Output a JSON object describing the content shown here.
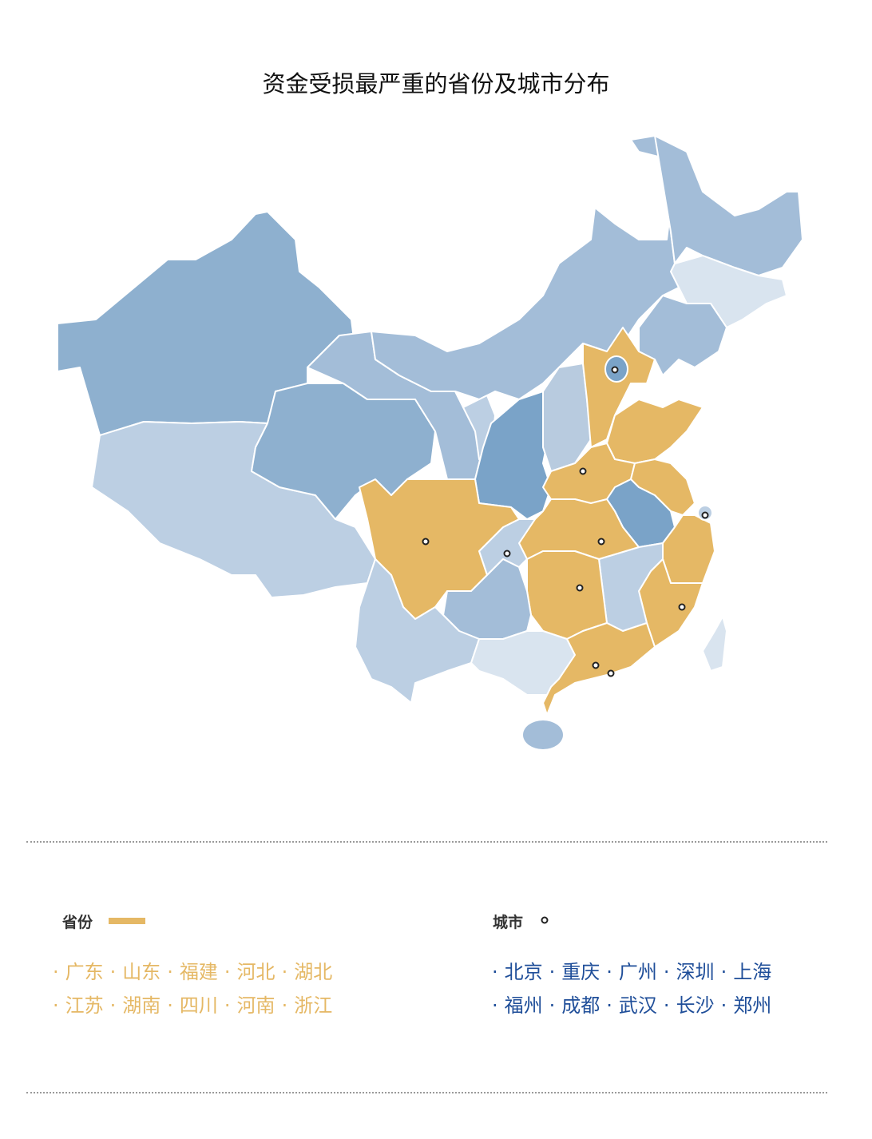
{
  "header": {
    "title": "资金受损最严重的省份及城市分布"
  },
  "legend": {
    "provinces_label": "省份",
    "cities_label": "城市"
  },
  "separator": "·",
  "provinces": [
    "广东",
    "山东",
    "福建",
    "河北",
    "湖北",
    "江苏",
    "湖南",
    "四川",
    "河南",
    "浙江"
  ],
  "cities": [
    "北京",
    "重庆",
    "广州",
    "深圳",
    "上海",
    "福州",
    "成都",
    "武汉",
    "长沙",
    "郑州"
  ]
}
